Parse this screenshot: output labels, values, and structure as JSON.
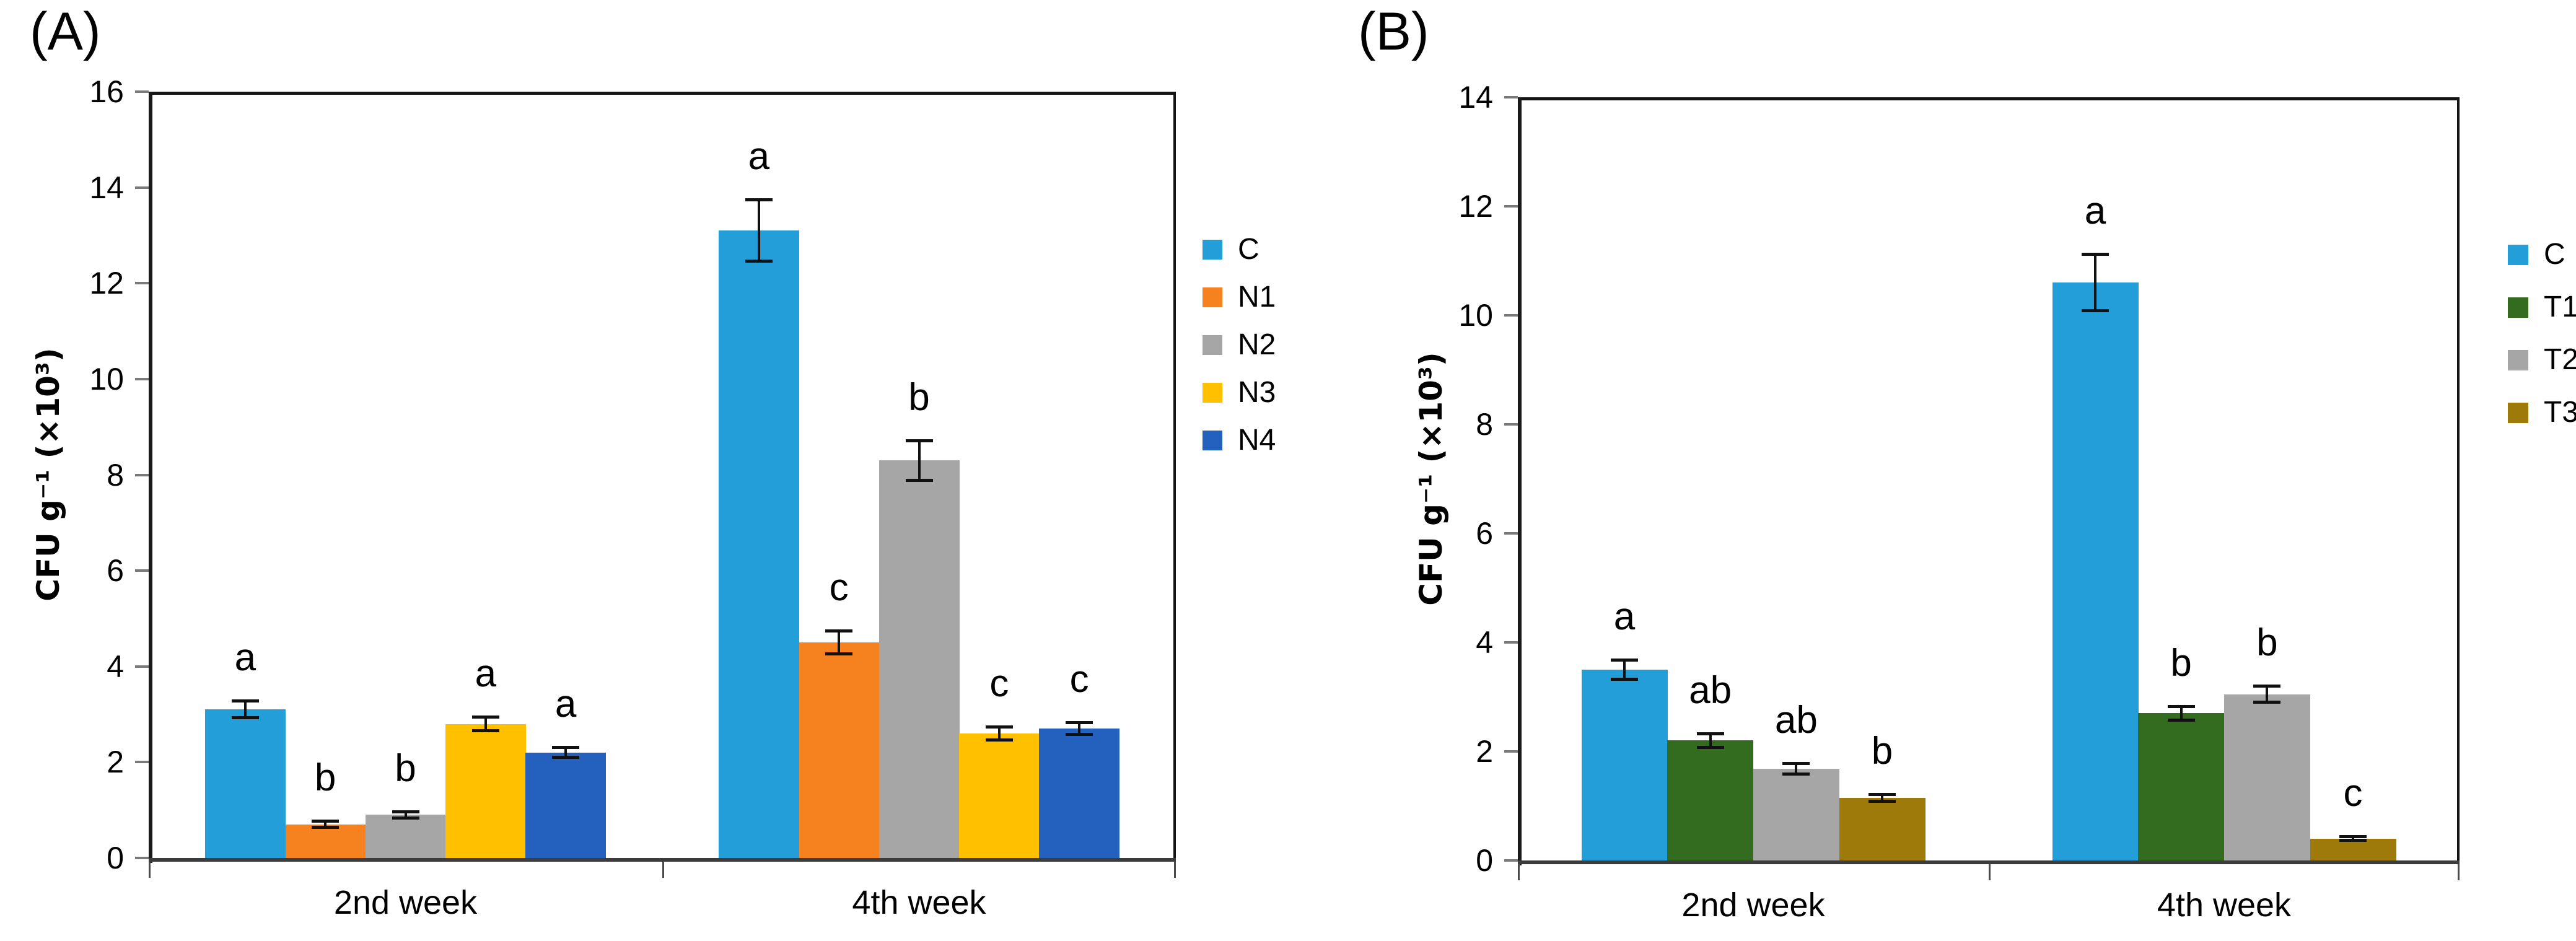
{
  "figure_title": "",
  "chart_data": [
    {
      "type": "bar",
      "panel_label": "(A)",
      "title": "",
      "xlabel": "",
      "ylabel": "CFU g⁻¹ (×10³)",
      "ylim": [
        0,
        16
      ],
      "ytick_step": 2,
      "grid": false,
      "legend_position": "right-outside",
      "categories": [
        "2nd week",
        "4th week"
      ],
      "series": [
        {
          "name": "C",
          "color": "#249ED9",
          "values": [
            3.1,
            13.1
          ],
          "errors": [
            0.18,
            0.65
          ],
          "sig_letters": [
            "a",
            "a"
          ]
        },
        {
          "name": "N1",
          "color": "#F5821F",
          "values": [
            0.7,
            4.5
          ],
          "errors": [
            0.07,
            0.25
          ],
          "sig_letters": [
            "b",
            "c"
          ]
        },
        {
          "name": "N2",
          "color": "#A6A6A6",
          "values": [
            0.9,
            8.3
          ],
          "errors": [
            0.07,
            0.42
          ],
          "sig_letters": [
            "b",
            "b"
          ]
        },
        {
          "name": "N3",
          "color": "#FFC000",
          "values": [
            2.8,
            2.6
          ],
          "errors": [
            0.15,
            0.14
          ],
          "sig_letters": [
            "a",
            "c"
          ]
        },
        {
          "name": "N4",
          "color": "#2461BE",
          "values": [
            2.2,
            2.7
          ],
          "errors": [
            0.11,
            0.13
          ],
          "sig_letters": [
            "a",
            "c"
          ]
        }
      ]
    },
    {
      "type": "bar",
      "panel_label": "(B)",
      "title": "",
      "xlabel": "",
      "ylabel": "CFU g⁻¹ (×10³)",
      "ylim": [
        0,
        14
      ],
      "ytick_step": 2,
      "grid": false,
      "legend_position": "right-outside",
      "categories": [
        "2nd week",
        "4th week"
      ],
      "series": [
        {
          "name": "C",
          "color": "#249ED9",
          "values": [
            3.5,
            10.6
          ],
          "errors": [
            0.18,
            0.52
          ],
          "sig_letters": [
            "a",
            "a"
          ]
        },
        {
          "name": "T1",
          "color": "#336B1F",
          "values": [
            2.2,
            2.7
          ],
          "errors": [
            0.13,
            0.13
          ],
          "sig_letters": [
            "ab",
            "b"
          ]
        },
        {
          "name": "T2",
          "color": "#A6A6A6",
          "values": [
            1.68,
            3.05
          ],
          "errors": [
            0.1,
            0.15
          ],
          "sig_letters": [
            "ab",
            "b"
          ]
        },
        {
          "name": "T3",
          "color": "#9E7A0A",
          "values": [
            1.15,
            0.4
          ],
          "errors": [
            0.07,
            0.04
          ],
          "sig_letters": [
            "b",
            "c"
          ]
        }
      ]
    }
  ]
}
